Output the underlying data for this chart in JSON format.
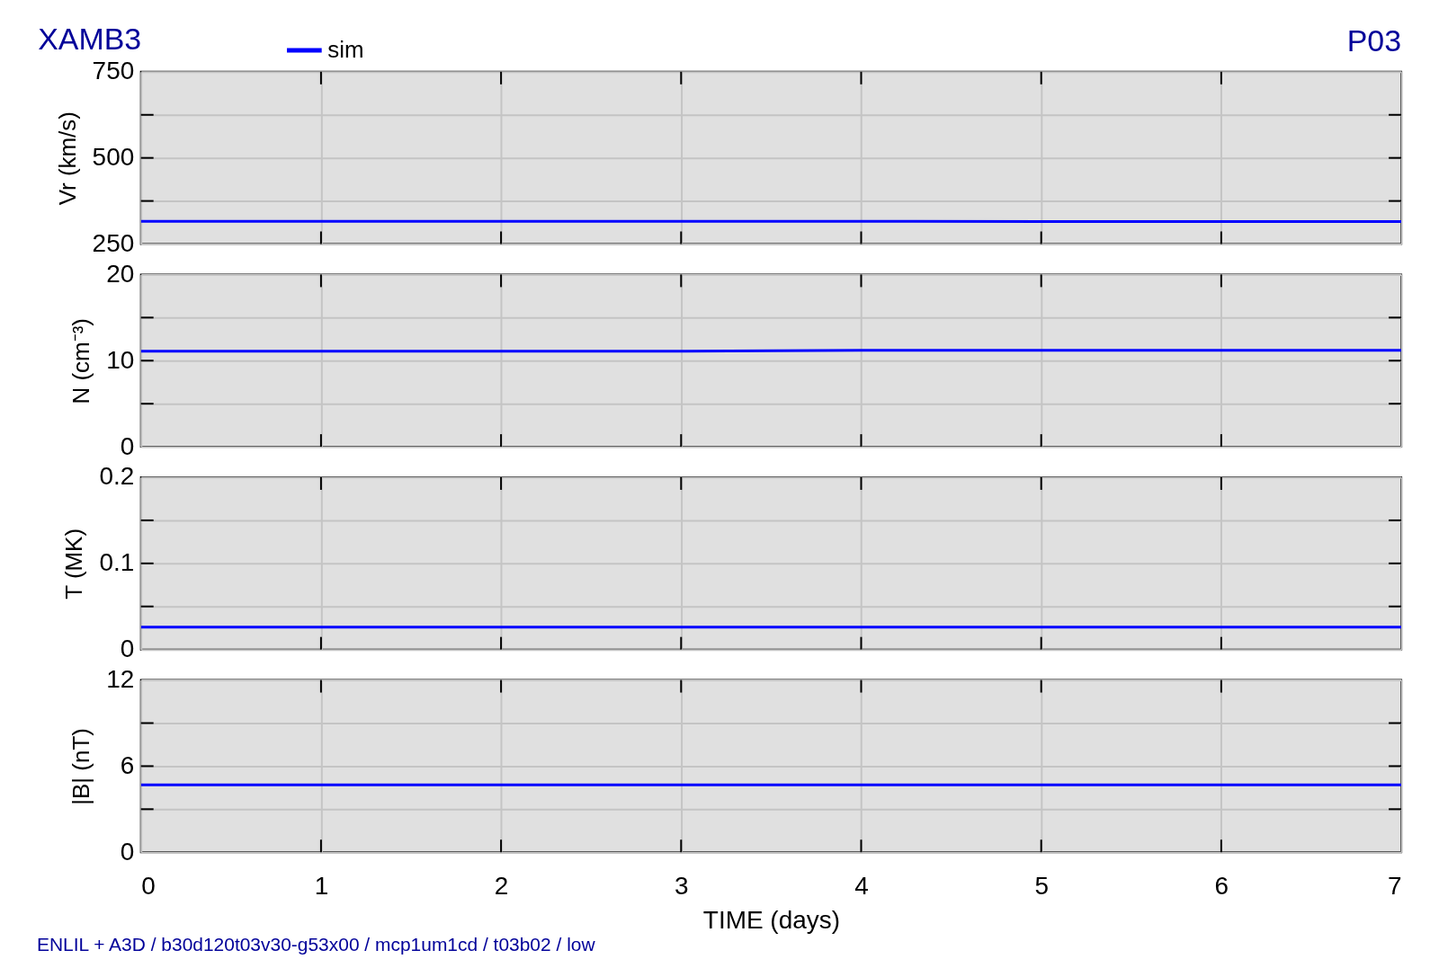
{
  "chart_data": [
    {
      "type": "line",
      "title": "XAMB3",
      "annotations": [
        "P03"
      ],
      "ylabel": "Vr (km/s)",
      "x": [
        0,
        1,
        2,
        3,
        4,
        5,
        6,
        7
      ],
      "series": [
        {
          "name": "sim",
          "color": "#0000ff",
          "values": [
            316,
            316,
            316,
            316,
            316,
            315,
            315,
            315
          ]
        }
      ],
      "xlim": [
        0,
        7
      ],
      "xticks": [
        0,
        1,
        2,
        3,
        4,
        5,
        6,
        7
      ],
      "ylim": [
        250,
        750
      ],
      "yticks": [
        250,
        {
          "value": 375,
          "label": null
        },
        500,
        {
          "value": 625,
          "label": null
        },
        750
      ],
      "grid": true,
      "legend": "top",
      "tick_labels": "y"
    },
    {
      "type": "line",
      "ylabel": "N (cm⁻³)",
      "x": [
        0,
        1,
        2,
        3,
        4,
        5,
        6,
        7
      ],
      "series": [
        {
          "color": "#0000ff",
          "values": [
            11.1,
            11.1,
            11.1,
            11.1,
            11.2,
            11.2,
            11.2,
            11.2
          ]
        }
      ],
      "xlim": [
        0,
        7
      ],
      "xticks": [
        0,
        1,
        2,
        3,
        4,
        5,
        6,
        7
      ],
      "ylim": [
        0,
        20
      ],
      "yticks": [
        0,
        {
          "value": 5,
          "label": null
        },
        10,
        {
          "value": 15,
          "label": null
        },
        20
      ],
      "grid": true,
      "tick_labels": "y"
    },
    {
      "type": "line",
      "ylabel": "T (MK)",
      "x": [
        0,
        1,
        2,
        3,
        4,
        5,
        6,
        7
      ],
      "series": [
        {
          "color": "#0000ff",
          "values": [
            0.026,
            0.026,
            0.026,
            0.026,
            0.026,
            0.026,
            0.026,
            0.026
          ]
        }
      ],
      "xlim": [
        0,
        7
      ],
      "xticks": [
        0,
        1,
        2,
        3,
        4,
        5,
        6,
        7
      ],
      "ylim": [
        0,
        0.2
      ],
      "yticks": [
        0,
        {
          "value": 0.05,
          "label": null
        },
        0.1,
        {
          "value": 0.15,
          "label": null
        },
        0.2
      ],
      "grid": true,
      "tick_labels": "y"
    },
    {
      "type": "line",
      "ylabel": "|B| (nT)",
      "xlabel": "TIME (days)",
      "annotations": [
        "ENLIL + A3D / b30d120t03v30-g53x00 / mcp1um1cd / t03b02 / low"
      ],
      "x": [
        0,
        1,
        2,
        3,
        4,
        5,
        6,
        7
      ],
      "series": [
        {
          "color": "#0000ff",
          "values": [
            4.7,
            4.7,
            4.7,
            4.7,
            4.7,
            4.7,
            4.7,
            4.7
          ]
        }
      ],
      "xlim": [
        0,
        7
      ],
      "xticks": [
        0,
        1,
        2,
        3,
        4,
        5,
        6,
        7
      ],
      "ylim": [
        0,
        12
      ],
      "yticks": [
        0,
        {
          "value": 3,
          "label": null
        },
        6,
        {
          "value": 9,
          "label": null
        },
        12
      ],
      "grid": true
    }
  ]
}
